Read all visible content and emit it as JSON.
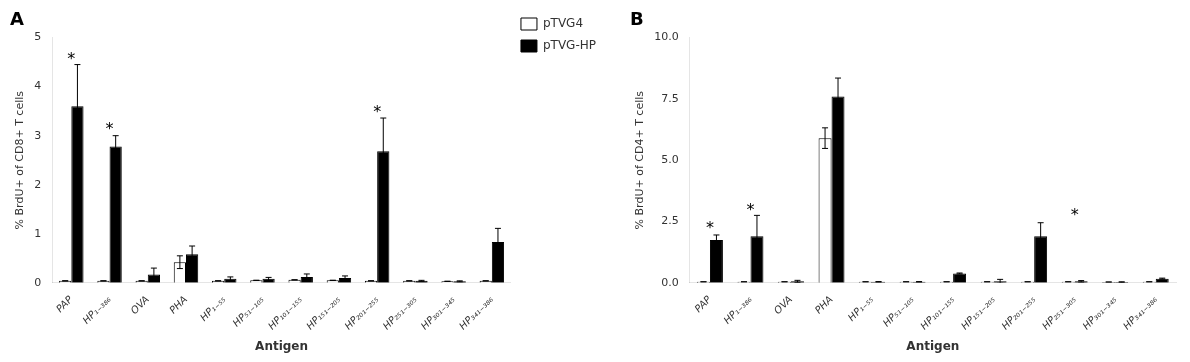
{
  "chart_data": [
    {
      "type": "bar",
      "title": "A",
      "xlabel": "Antigen",
      "ylabel": "% BrdU+ of CD8+ T cells",
      "categories": [
        "PAP",
        "HP₁₋₃₈₆",
        "OVA",
        "PHA",
        "HP₁₋₅₅",
        "HP₅₁₋₁₀₅",
        "HP₁₀₁₋₁₅₅",
        "HP₁₅₁₋₂₀₅",
        "HP₂₀₁₋₂₅₅",
        "HP₂₅₁₋₃₀₅",
        "HP₃₀₁₋₃₄₅",
        "HP₃₄₁₋₃₈₆"
      ],
      "series": [
        {
          "name": "pTVG4",
          "color": "white",
          "values": [
            0.04,
            0.04,
            0.04,
            0.42,
            0.04,
            0.05,
            0.06,
            0.05,
            0.04,
            0.04,
            0.03,
            0.04
          ],
          "errors": [
            0.0,
            0.0,
            0.0,
            0.13,
            0.0,
            0.0,
            0.0,
            0.0,
            0.0,
            0.0,
            0.0,
            0.0
          ]
        },
        {
          "name": "pTVG-HP",
          "color": "black",
          "values": [
            3.6,
            2.78,
            0.17,
            0.58,
            0.08,
            0.08,
            0.12,
            0.1,
            2.68,
            0.04,
            0.03,
            0.83
          ],
          "errors": [
            0.85,
            0.22,
            0.13,
            0.17,
            0.04,
            0.03,
            0.06,
            0.04,
            0.68,
            0.01,
            0.01,
            0.28
          ]
        }
      ],
      "annotations": [
        {
          "text": "*",
          "x": "PAP",
          "y": 4.5
        },
        {
          "text": "*",
          "x": "HP₁₋₃₈₆",
          "y": 3.08
        },
        {
          "text": "*",
          "x": "HP₂₀₁₋₂₅₅",
          "y": 3.42
        }
      ],
      "ylim": [
        0,
        5
      ],
      "yticks": [
        0,
        1,
        2,
        3,
        4,
        5
      ],
      "grid": false,
      "legend": "upper right"
    },
    {
      "type": "bar",
      "title": "B",
      "xlabel": "Antigen",
      "ylabel": "% BrdU+ of CD4+ T cells",
      "categories": [
        "PAP",
        "HP₁₋₃₈₆",
        "OVA",
        "PHA",
        "HP₁₋₅₅",
        "HP₅₁₋₁₀₅",
        "HP₁₀₁₋₁₅₅",
        "HP₁₅₁₋₂₀₅",
        "HP₂₀₁₋₂₅₅",
        "HP₂₅₁₋₃₀₅",
        "HP₃₀₁₋₃₄₅",
        "HP₃₄₁₋₃₈₆"
      ],
      "series": [
        {
          "name": "pTVG4",
          "color": "white",
          "values": [
            0.04,
            0.04,
            0.04,
            5.9,
            0.04,
            0.04,
            0.04,
            0.04,
            0.04,
            0.04,
            0.03,
            0.04
          ],
          "errors": [
            0.0,
            0.0,
            0.0,
            0.42,
            0.0,
            0.0,
            0.0,
            0.0,
            0.0,
            0.0,
            0.0,
            0.0
          ]
        },
        {
          "name": "pTVG-HP",
          "color": "black",
          "values": [
            1.75,
            1.9,
            0.06,
            7.6,
            0.04,
            0.04,
            0.38,
            0.06,
            1.9,
            0.06,
            0.03,
            0.17
          ],
          "errors": [
            0.2,
            0.85,
            0.04,
            0.75,
            0.01,
            0.01,
            0.02,
            0.08,
            0.55,
            0.03,
            0.01,
            0.02
          ]
        }
      ],
      "annotations": [
        {
          "text": "*",
          "x": "PAP",
          "y": 2.1
        },
        {
          "text": "*",
          "x": "HP₁₋₃₈₆",
          "y": 2.85
        },
        {
          "text": "*",
          "x": "HP₂₅₁₋₃₀₅",
          "y": 2.65
        }
      ],
      "ylim": [
        0,
        10.0
      ],
      "yticks": [
        {
          "value": 0.0,
          "label": "0.0"
        },
        2.5,
        {
          "value": 5.0,
          "label": "5.0"
        },
        7.5,
        {
          "value": 10.0,
          "label": "10.0"
        }
      ],
      "grid": false
    }
  ]
}
